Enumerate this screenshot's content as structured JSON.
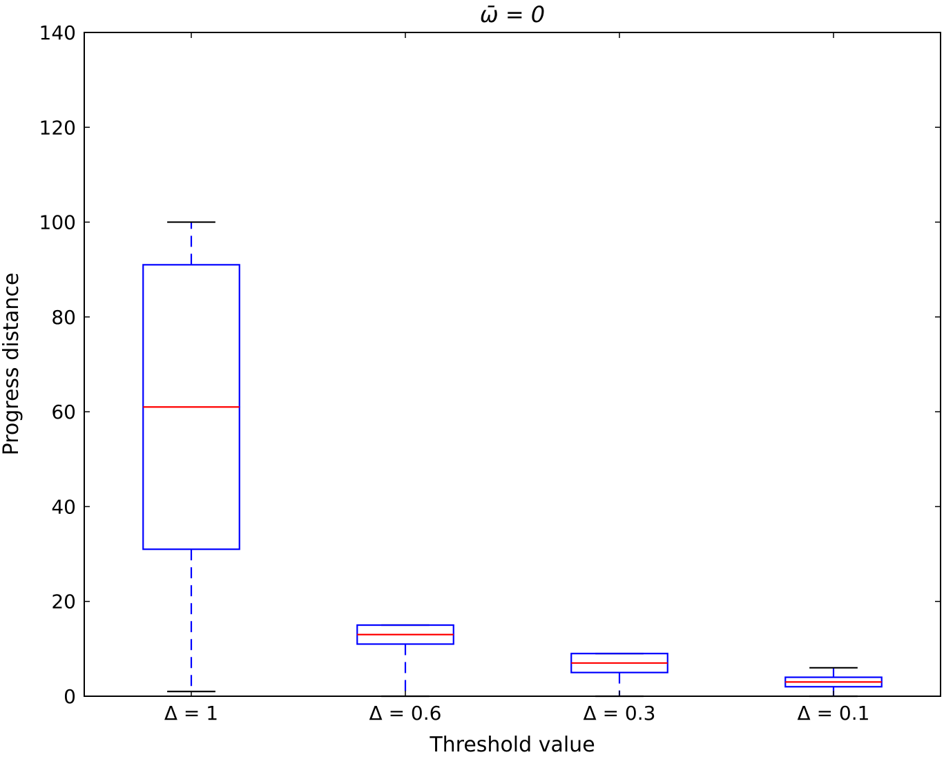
{
  "chart_data": {
    "type": "boxplot",
    "title": "ω̄ = 0",
    "xlabel": "Threshold value",
    "ylabel": "Progress distance",
    "ylim": [
      0,
      140
    ],
    "yticks": [
      0,
      20,
      40,
      60,
      80,
      100,
      120,
      140
    ],
    "grid": false,
    "categories": [
      "Δ = 1",
      "Δ = 0.6",
      "Δ = 0.3",
      "Δ = 0.1"
    ],
    "boxes": [
      {
        "label": "Δ = 1",
        "whisker_low": 1,
        "q1": 31,
        "median": 61,
        "q3": 91,
        "whisker_high": 100
      },
      {
        "label": "Δ = 0.6",
        "whisker_low": 0,
        "q1": 11,
        "median": 13,
        "q3": 15,
        "whisker_high": 15
      },
      {
        "label": "Δ = 0.3",
        "whisker_low": 0,
        "q1": 5,
        "median": 7,
        "q3": 9,
        "whisker_high": 9
      },
      {
        "label": "Δ = 0.1",
        "whisker_low": 0,
        "q1": 2,
        "median": 3,
        "q3": 4,
        "whisker_high": 6
      }
    ],
    "colors": {
      "box": "#0000ff",
      "median": "#ff0000",
      "whisker_cap": "#000000",
      "axes": "#000000"
    }
  }
}
